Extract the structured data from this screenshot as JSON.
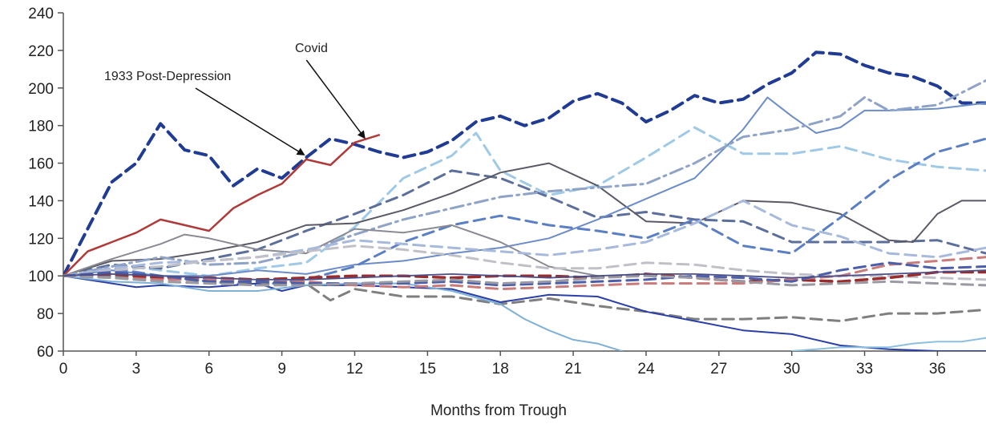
{
  "chart_data": {
    "type": "line",
    "title": "",
    "xlabel": "Months from Trough",
    "ylabel": "",
    "xlim": [
      0,
      38
    ],
    "ylim": [
      60,
      240
    ],
    "xticks": [
      0,
      3,
      6,
      9,
      12,
      15,
      18,
      21,
      24,
      27,
      30,
      33,
      36
    ],
    "yticks": [
      60,
      80,
      100,
      120,
      140,
      160,
      180,
      200,
      220,
      240
    ],
    "grid": false,
    "legend": "none",
    "annotations": [
      {
        "text": "1933 Post-Depression",
        "x": 10,
        "y": 162
      },
      {
        "text": "Covid",
        "x": 12.5,
        "y": 171
      }
    ],
    "series": [
      {
        "color": "#1f3b93",
        "style": "dashed",
        "width": 4,
        "x": [
          0,
          1,
          2,
          3,
          4,
          5,
          6,
          7,
          8,
          9,
          10,
          11,
          12,
          13,
          14,
          15,
          16,
          17,
          18,
          19,
          20,
          21,
          22,
          23,
          24,
          25,
          26,
          27,
          28,
          29,
          30,
          31,
          32,
          33,
          34,
          35,
          36,
          37,
          38
        ],
        "y": [
          100,
          125,
          150,
          160,
          181,
          167,
          164,
          148,
          157,
          152,
          163,
          173,
          170,
          166,
          163,
          166,
          172,
          182,
          185,
          180,
          184,
          193,
          197,
          192,
          182,
          188,
          196,
          192,
          194,
          202,
          208,
          219,
          218,
          212,
          208,
          206,
          201,
          192,
          192
        ]
      },
      {
        "color": "#b03a3a",
        "style": "solid",
        "width": 2.5,
        "x": [
          0,
          1,
          2,
          3,
          4,
          5,
          6,
          7,
          8,
          9,
          10,
          11,
          12,
          13
        ],
        "y": [
          100,
          113,
          118,
          123,
          130,
          127,
          124,
          136,
          143,
          149,
          162,
          159,
          171,
          175
        ]
      },
      {
        "color": "#9fc9e6",
        "style": "dashed",
        "width": 3,
        "x": [
          0,
          2,
          4,
          6,
          8,
          10,
          12,
          14,
          16,
          17,
          18,
          20,
          22,
          24,
          26,
          28,
          30,
          32,
          34,
          36,
          38
        ],
        "y": [
          100,
          106,
          103,
          100,
          104,
          107,
          126,
          152,
          164,
          176,
          156,
          143,
          148,
          163,
          179,
          165,
          165,
          169,
          162,
          158,
          156
        ]
      },
      {
        "color": "#5c6f9c",
        "style": "dashed",
        "width": 3,
        "x": [
          0,
          2,
          4,
          6,
          8,
          10,
          12,
          14,
          16,
          18,
          20,
          22,
          24,
          26,
          28,
          30,
          32,
          34,
          36,
          38
        ],
        "y": [
          100,
          106,
          104,
          109,
          114,
          124,
          133,
          143,
          156,
          152,
          142,
          131,
          134,
          130,
          129,
          118,
          118,
          118,
          119,
          112
        ]
      },
      {
        "color": "#5a5a66",
        "style": "solid",
        "width": 2,
        "x": [
          0,
          2,
          4,
          6,
          8,
          10,
          12,
          14,
          16,
          18,
          20,
          22,
          24,
          26,
          28,
          30,
          32,
          34,
          35,
          36,
          37,
          38
        ],
        "y": [
          100,
          108,
          109,
          113,
          118,
          127,
          128,
          135,
          144,
          155,
          160,
          148,
          129,
          128,
          140,
          139,
          133,
          119,
          118,
          133,
          140,
          140
        ]
      },
      {
        "color": "#6b8cc9",
        "style": "solid",
        "width": 2,
        "x": [
          0,
          2,
          4,
          6,
          8,
          10,
          12,
          14,
          16,
          18,
          20,
          22,
          24,
          26,
          28,
          29,
          30,
          31,
          32,
          33,
          34,
          36,
          38
        ],
        "y": [
          100,
          103,
          100,
          100,
          103,
          101,
          106,
          108,
          112,
          115,
          120,
          130,
          141,
          152,
          178,
          195,
          185,
          176,
          179,
          188,
          188,
          189,
          192
        ]
      },
      {
        "color": "#8fa3c8",
        "style": "dashdot",
        "width": 3,
        "x": [
          0,
          2,
          4,
          6,
          8,
          10,
          12,
          14,
          16,
          18,
          20,
          22,
          24,
          26,
          28,
          30,
          32,
          33,
          34,
          36,
          38
        ],
        "y": [
          100,
          105,
          110,
          106,
          107,
          113,
          122,
          130,
          136,
          142,
          145,
          147,
          149,
          160,
          174,
          178,
          185,
          195,
          188,
          191,
          204
        ]
      },
      {
        "color": "#5a7fc4",
        "style": "dashed",
        "width": 3,
        "x": [
          0,
          2,
          4,
          6,
          8,
          10,
          12,
          14,
          16,
          18,
          20,
          22,
          24,
          26,
          28,
          30,
          32,
          34,
          36,
          38
        ],
        "y": [
          100,
          104,
          100,
          97,
          95,
          98,
          105,
          118,
          127,
          132,
          127,
          124,
          120,
          130,
          116,
          112,
          131,
          151,
          166,
          173
        ]
      },
      {
        "color": "#8a8a94",
        "style": "solid",
        "width": 2,
        "x": [
          0,
          2,
          4,
          5,
          6,
          8,
          10,
          12,
          14,
          16,
          18,
          20,
          22
        ],
        "y": [
          100,
          109,
          117,
          122,
          120,
          114,
          112,
          125,
          123,
          127,
          118,
          105,
          100
        ]
      },
      {
        "color": "#a7b9dc",
        "style": "dashed",
        "width": 3,
        "x": [
          0,
          2,
          4,
          6,
          8,
          10,
          12,
          14,
          16,
          18,
          20,
          22,
          24,
          26,
          28,
          30,
          32,
          34,
          36,
          38
        ],
        "y": [
          100,
          104,
          107,
          108,
          110,
          114,
          119,
          117,
          115,
          113,
          111,
          114,
          118,
          128,
          140,
          127,
          121,
          112,
          110,
          115
        ]
      },
      {
        "color": "#7f7f7f",
        "style": "dashed",
        "width": 3,
        "x": [
          0,
          2,
          4,
          6,
          8,
          10,
          11,
          12,
          14,
          16,
          18,
          20,
          22,
          24,
          26,
          28,
          30,
          32,
          34,
          36,
          38
        ],
        "y": [
          100,
          100,
          99,
          97,
          96,
          96,
          87,
          93,
          89,
          89,
          85,
          88,
          84,
          81,
          77,
          77,
          78,
          76,
          80,
          80,
          82
        ]
      },
      {
        "color": "#c0c0c8",
        "style": "dashed",
        "width": 3,
        "x": [
          0,
          2,
          4,
          6,
          8,
          10,
          12,
          14,
          16,
          18,
          20,
          22,
          24,
          26,
          28,
          30,
          32,
          34,
          36,
          38
        ],
        "y": [
          100,
          103,
          105,
          108,
          110,
          113,
          116,
          114,
          111,
          107,
          104,
          104,
          107,
          106,
          103,
          101,
          100,
          100,
          99,
          98
        ]
      },
      {
        "color": "#2a3fa8",
        "style": "solid",
        "width": 2,
        "x": [
          0,
          2,
          3,
          4,
          6,
          8,
          9,
          10,
          12,
          14,
          16,
          18,
          20,
          22,
          24,
          26,
          28,
          30,
          32,
          34,
          36,
          38
        ],
        "y": [
          100,
          96,
          94,
          95,
          94,
          96,
          92,
          95,
          95,
          94,
          93,
          86,
          90,
          89,
          81,
          76,
          71,
          69,
          63,
          61,
          60,
          60
        ]
      },
      {
        "color": "#7fb0d6",
        "style": "solid",
        "width": 2,
        "x": [
          0,
          2,
          4,
          6,
          8,
          10,
          12,
          14,
          16,
          18,
          19,
          20,
          21,
          22,
          23
        ],
        "y": [
          100,
          97,
          96,
          92,
          92,
          95,
          96,
          96,
          92,
          85,
          77,
          71,
          66,
          64,
          60
        ]
      },
      {
        "color": "#8cc0e0",
        "style": "solid",
        "width": 2,
        "x": [
          30,
          31,
          32,
          34,
          35,
          36,
          37,
          38
        ],
        "y": [
          60,
          61,
          62,
          62,
          64,
          65,
          65,
          67
        ]
      },
      {
        "color": "#9b2c2c",
        "style": "dashed",
        "width": 3.5,
        "x": [
          0,
          2,
          4,
          6,
          8,
          10,
          12,
          14,
          16,
          18,
          20,
          22,
          24,
          26,
          28,
          30,
          32,
          34,
          36,
          38
        ],
        "y": [
          100,
          101,
          99,
          99,
          98,
          99,
          100,
          100,
          99,
          100,
          100,
          99,
          101,
          99,
          97,
          98,
          97,
          99,
          102,
          102
        ]
      },
      {
        "color": "#c97a7a",
        "style": "dashed",
        "width": 3,
        "x": [
          0,
          2,
          4,
          6,
          8,
          10,
          12,
          14,
          16,
          18,
          20,
          22,
          24,
          26,
          28,
          30,
          32,
          34,
          36,
          38
        ],
        "y": [
          100,
          99,
          98,
          98,
          97,
          97,
          95,
          94,
          95,
          93,
          94,
          95,
          96,
          96,
          96,
          98,
          100,
          106,
          108,
          110
        ]
      },
      {
        "color": "#4b5ea9",
        "style": "dashed",
        "width": 3,
        "x": [
          0,
          2,
          4,
          6,
          8,
          10,
          12,
          14,
          16,
          18,
          20,
          22,
          24,
          26,
          28,
          30,
          32,
          34,
          36,
          38
        ],
        "y": [
          100,
          102,
          100,
          97,
          97,
          96,
          96,
          96,
          97,
          95,
          96,
          97,
          98,
          100,
          99,
          97,
          103,
          107,
          104,
          105
        ]
      },
      {
        "color": "#9a9aa4",
        "style": "dashed",
        "width": 3,
        "x": [
          0,
          2,
          4,
          6,
          8,
          10,
          12,
          14,
          16,
          18,
          20,
          22,
          24,
          26,
          28,
          30,
          32,
          34,
          36,
          38
        ],
        "y": [
          100,
          99,
          97,
          96,
          95,
          95,
          96,
          97,
          98,
          96,
          97,
          99,
          100,
          99,
          97,
          95,
          96,
          97,
          96,
          95
        ]
      },
      {
        "color": "#4a4f8a",
        "style": "solid",
        "width": 1.8,
        "x": [
          0,
          2,
          4,
          6,
          8,
          10,
          12,
          14,
          16,
          18,
          20,
          22,
          24,
          26,
          28,
          30,
          32,
          34,
          36,
          38
        ],
        "y": [
          100,
          101,
          100,
          99,
          98,
          98,
          99,
          100,
          101,
          100,
          99,
          100,
          101,
          101,
          100,
          99,
          100,
          101,
          102,
          103
        ]
      }
    ]
  }
}
